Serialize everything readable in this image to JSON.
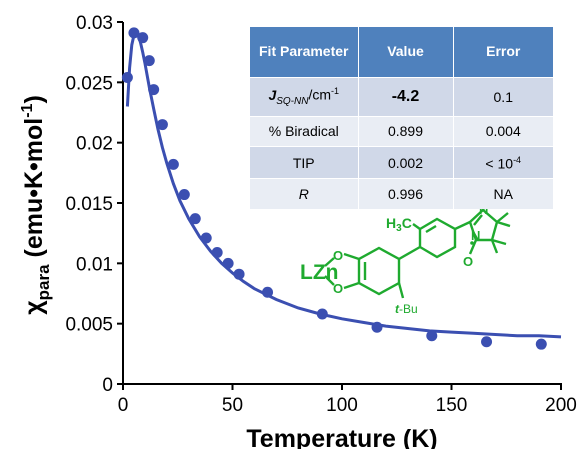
{
  "chart_data": {
    "type": "scatter",
    "xlabel": "Temperature (K)",
    "ylabel_main": "χ",
    "ylabel_sub": "para",
    "ylabel_units": " (emu•K•mol",
    "ylabel_sup": "-1",
    "ylabel_close": ")",
    "xlim": [
      0,
      200
    ],
    "ylim": [
      0,
      0.03
    ],
    "xticks": [
      0,
      50,
      100,
      150,
      200
    ],
    "xtick_labels": [
      "0",
      "50",
      "100",
      "150",
      "200"
    ],
    "yticks": [
      0,
      0.005,
      0.01,
      0.015,
      0.02,
      0.025,
      0.03
    ],
    "ytick_labels": [
      "0",
      "0.005",
      "0.01",
      "0.015",
      "0.02",
      "0.025",
      "0.03"
    ],
    "grid": false,
    "series": [
      {
        "kind": "points",
        "color": "#3b4fb1",
        "x": [
          2,
          5,
          9,
          12,
          14,
          18,
          23,
          28,
          33,
          38,
          43,
          48,
          53,
          66,
          91,
          116,
          141,
          166,
          191
        ],
        "y": [
          0.0254,
          0.0291,
          0.0287,
          0.0268,
          0.0244,
          0.0215,
          0.0182,
          0.0157,
          0.0137,
          0.0121,
          0.0109,
          0.01,
          0.0091,
          0.0076,
          0.0058,
          0.0047,
          0.004,
          0.0035,
          0.0033
        ]
      },
      {
        "kind": "fit-line",
        "color": "#3b4fb1",
        "x": [
          2,
          3,
          4,
          5,
          6,
          7,
          8,
          9,
          10,
          12,
          14,
          16,
          18,
          20,
          23,
          26,
          30,
          35,
          40,
          45,
          50,
          55,
          60,
          70,
          80,
          90,
          100,
          110,
          120,
          130,
          140,
          150,
          160,
          170,
          180,
          190,
          200
        ],
        "y": [
          0.023,
          0.0262,
          0.0281,
          0.0289,
          0.0291,
          0.0289,
          0.0283,
          0.0275,
          0.0266,
          0.0246,
          0.0228,
          0.0211,
          0.0196,
          0.0183,
          0.0166,
          0.0152,
          0.0137,
          0.0122,
          0.011,
          0.01,
          0.0092,
          0.0085,
          0.0079,
          0.007,
          0.0063,
          0.0058,
          0.0054,
          0.0051,
          0.0048,
          0.0046,
          0.0044,
          0.0043,
          0.0042,
          0.0041,
          0.004,
          0.004,
          0.0039
        ]
      }
    ]
  },
  "fit_table": {
    "headers": [
      "Fit Parameter",
      "Value",
      "Error"
    ],
    "rows": [
      {
        "param_main": "J",
        "param_sub": "SQ-NN",
        "param_rest": "/cm",
        "param_sup": "-1",
        "value": "-4.2",
        "error": "0.1"
      },
      {
        "param": "% Biradical",
        "value": "0.899",
        "error": "0.004"
      },
      {
        "param": "TIP",
        "value": "0.002",
        "error_base": "< 10",
        "error_sup": "-4"
      },
      {
        "param": "R",
        "value": "0.996",
        "error": "NA"
      }
    ]
  },
  "structure": {
    "color": "#1faa2f",
    "lzn": "LZn",
    "o_top": "O",
    "o_bottom": "O",
    "h3c": "H",
    "h3c_sub": "3",
    "h3c_c": "C",
    "tbu_t": "t",
    "tbu_rest": "-Bu",
    "n_plus": "N",
    "n_rad": "N",
    "o_minus": "O",
    "o_rad": "O",
    "plus": "⊕",
    "minus": "⊖"
  }
}
